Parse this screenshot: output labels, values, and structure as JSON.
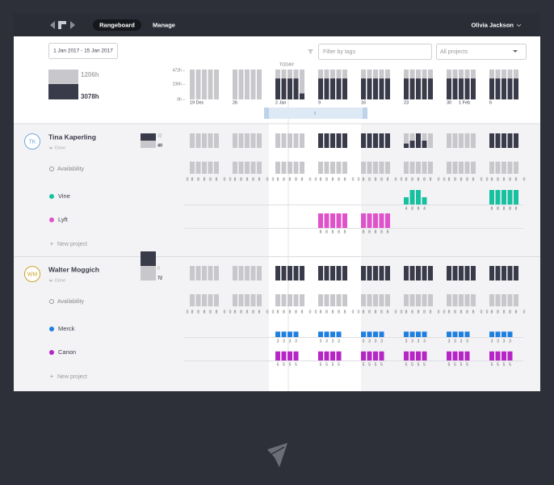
{
  "nav": {
    "tabs": [
      "Rangeboard",
      "Manage"
    ],
    "user": "Olivia Jackson"
  },
  "toolbar": {
    "date_range": "1 Jan 2017 - 15 Jan 2017",
    "filter_placeholder": "Filter by tags",
    "project_select": "All projects"
  },
  "summary": {
    "booked": "1206h",
    "capacity": "3078h"
  },
  "timeline": {
    "today_label": "TODAY",
    "y_labels": [
      "472h –",
      "236h –",
      "0h –"
    ],
    "week_labels": [
      "19 Dec",
      "26",
      "2 Jan",
      "9",
      "16",
      "23",
      "30",
      "6"
    ],
    "month_label": "1 Feb",
    "load": [
      [
        0,
        0,
        0,
        0,
        0
      ],
      [
        0,
        0,
        0,
        0,
        0
      ],
      [
        0.7,
        0.7,
        0.7,
        0.7,
        0.2
      ],
      [
        0.7,
        0.7,
        0.7,
        0.7,
        0.7
      ],
      [
        0.7,
        0.7,
        0.7,
        0.7,
        0.7
      ],
      [
        0.7,
        0.7,
        0.7,
        0.7,
        0.7
      ],
      [
        0.7,
        0.7,
        0.7,
        0.7,
        0.7
      ],
      [
        0.7,
        0.7,
        0.7,
        0.7,
        0.7
      ]
    ],
    "scroll_label": "II"
  },
  "people": [
    {
      "initials": "TK",
      "color": "#6fa8dc",
      "name": "Tina Kaperling",
      "status": "Done",
      "hours": [
        "32",
        "40"
      ],
      "hours_fill": [
        0.5,
        0.5
      ],
      "load": [
        [
          0,
          0,
          0,
          0,
          0
        ],
        [
          0,
          0,
          0,
          0,
          0
        ],
        [
          0,
          0,
          0,
          0,
          0
        ],
        [
          1,
          1,
          1,
          1,
          1
        ],
        [
          1,
          1,
          1,
          1,
          1
        ],
        [
          0.3,
          0.5,
          1,
          0.5,
          0
        ],
        [
          0,
          0,
          0,
          0,
          0
        ],
        [
          1,
          1,
          1,
          1,
          1
        ]
      ],
      "availability_label": "Availability",
      "availability": [
        [
          0,
          8,
          8,
          8,
          8,
          8,
          0
        ],
        [
          0,
          8,
          8,
          8,
          8,
          8,
          0
        ],
        [
          0,
          8,
          8,
          8,
          8,
          8,
          0
        ],
        [
          0,
          8,
          8,
          8,
          8,
          8,
          0
        ],
        [
          0,
          8,
          8,
          8,
          8,
          8,
          0
        ],
        [
          0,
          8,
          8,
          8,
          8,
          8,
          0
        ],
        [
          0,
          8,
          8,
          8,
          8,
          8,
          0
        ],
        [
          0,
          8,
          8,
          8,
          8,
          8,
          0
        ]
      ],
      "projects": [
        {
          "name": "Vine",
          "color": "#17c1a0",
          "weeks": [
            null,
            null,
            null,
            null,
            null,
            [
              4,
              8,
              8,
              4
            ],
            null,
            [
              8,
              8,
              8,
              8,
              8
            ]
          ]
        },
        {
          "name": "Lyft",
          "color": "#e052c9",
          "weeks": [
            null,
            null,
            null,
            [
              8,
              8,
              8,
              8,
              8
            ],
            [
              8,
              8,
              8,
              8,
              8
            ],
            null,
            null,
            null
          ]
        }
      ],
      "new_project": "New project"
    },
    {
      "initials": "WM",
      "color": "#c9a227",
      "name": "Walter Moggich",
      "status": "Done",
      "hours": [
        "0",
        "72"
      ],
      "hours_fill": [
        0,
        1
      ],
      "load": [
        [
          0,
          0,
          0,
          0,
          0
        ],
        [
          0,
          0,
          0,
          0,
          0
        ],
        [
          1,
          1,
          1,
          1,
          1
        ],
        [
          1,
          1,
          1,
          1,
          1
        ],
        [
          1,
          1,
          1,
          1,
          1
        ],
        [
          1,
          1,
          1,
          1,
          1
        ],
        [
          1,
          1,
          1,
          1,
          1
        ],
        [
          1,
          1,
          1,
          1,
          1
        ]
      ],
      "availability_label": "Availability",
      "availability": [
        [
          0,
          8,
          8,
          8,
          8,
          8,
          0
        ],
        [
          0,
          8,
          8,
          8,
          8,
          8,
          0
        ],
        [
          0,
          8,
          8,
          8,
          8,
          8,
          0
        ],
        [
          0,
          8,
          8,
          8,
          8,
          8,
          0
        ],
        [
          0,
          8,
          8,
          8,
          8,
          8,
          0
        ],
        [
          0,
          8,
          8,
          8,
          8,
          8,
          0
        ],
        [
          0,
          8,
          8,
          8,
          8,
          8,
          0
        ],
        [
          0,
          8,
          8,
          8,
          8,
          8,
          0
        ]
      ],
      "projects": [
        {
          "name": "Merck",
          "color": "#1f7fe0",
          "weeks": [
            null,
            null,
            [
              3,
              3,
              3,
              3
            ],
            [
              3,
              3,
              3,
              3
            ],
            [
              3,
              3,
              3,
              3
            ],
            [
              3,
              3,
              3,
              3
            ],
            [
              3,
              3,
              3,
              3
            ],
            [
              3,
              3,
              3,
              3
            ]
          ]
        },
        {
          "name": "Canon",
          "color": "#b526c4",
          "weeks": [
            null,
            null,
            [
              5,
              5,
              5,
              5
            ],
            [
              5,
              5,
              5,
              5
            ],
            [
              5,
              5,
              5,
              5
            ],
            [
              5,
              5,
              5,
              5
            ],
            [
              5,
              5,
              5,
              5
            ],
            [
              5,
              5,
              5,
              5
            ]
          ]
        }
      ],
      "new_project": "New project"
    }
  ]
}
